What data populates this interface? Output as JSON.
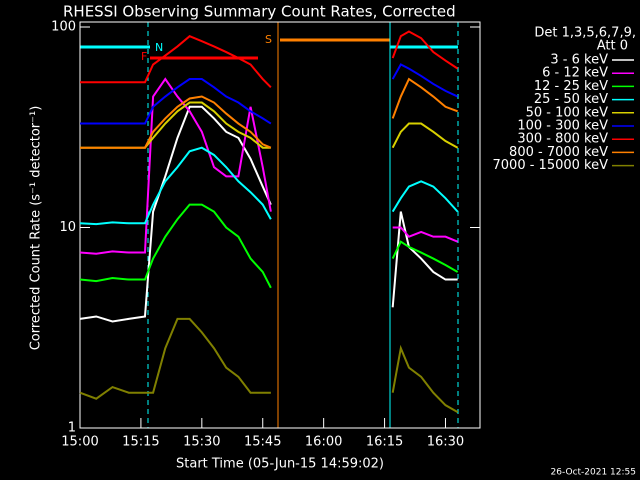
{
  "chart_data": {
    "type": "line",
    "title": "RHESSI Observing Summary Count Rates, Corrected",
    "x_label": "Start Time (05-Jun-15 14:59:02)",
    "y_label": "Corrected Count Rate (s⁻¹ detector⁻¹)",
    "legend_header": [
      "Det 1,3,5,6,7,9,",
      "Att 0"
    ],
    "footer": "26-Oct-2021 12:55",
    "flags": [
      "F",
      "N",
      "S"
    ],
    "log_y": true,
    "legend": "right",
    "xlim": [
      0,
      98.5
    ],
    "xticks": [
      {
        "value": 0,
        "label": "15:00"
      },
      {
        "value": 15,
        "label": "15:15"
      },
      {
        "value": 30,
        "label": "15:30"
      },
      {
        "value": 45,
        "label": "15:45"
      },
      {
        "value": 60,
        "label": "16:00"
      },
      {
        "value": 75,
        "label": "16:15"
      },
      {
        "value": 90,
        "label": "16:30"
      }
    ],
    "ylim": [
      1,
      100
    ],
    "yticks": [
      1,
      10,
      100
    ],
    "x": [
      0,
      4,
      8,
      12,
      16,
      18,
      21,
      24,
      27,
      30,
      33,
      36,
      39,
      42,
      45,
      47,
      60,
      77,
      79,
      81,
      84,
      87,
      90,
      93
    ],
    "series": [
      {
        "name": "3 - 6 keV",
        "color": "#ffffff",
        "values": [
          3.5,
          3.6,
          3.4,
          3.5,
          3.6,
          12,
          18,
          28,
          40,
          40,
          35,
          30,
          28,
          22,
          16,
          13,
          null,
          4,
          12,
          8,
          7,
          6,
          5.5,
          5.5
        ]
      },
      {
        "name": "6 - 12 keV",
        "color": "#ff00ff",
        "values": [
          7.5,
          7.4,
          7.6,
          7.5,
          7.5,
          45,
          55,
          45,
          38,
          30,
          20,
          18,
          18,
          40,
          20,
          12,
          null,
          10,
          10,
          9,
          9.5,
          9,
          9,
          8.5
        ]
      },
      {
        "name": "12 - 25 keV",
        "color": "#00ff00",
        "values": [
          5.5,
          5.4,
          5.6,
          5.5,
          5.5,
          7,
          9,
          11,
          13,
          13,
          12,
          10,
          9,
          7,
          6,
          5,
          null,
          7,
          8.5,
          8,
          7.5,
          7,
          6.5,
          6
        ]
      },
      {
        "name": "25 - 50 keV",
        "color": "#00ffff",
        "values": [
          10.5,
          10.4,
          10.6,
          10.5,
          10.5,
          13,
          17,
          20,
          24,
          25,
          23,
          20,
          17,
          15,
          13,
          11,
          null,
          12,
          14,
          16,
          17,
          16,
          14,
          12
        ]
      },
      {
        "name": "50 - 100 keV",
        "color": "#d8d000",
        "values": [
          25,
          25,
          25,
          25,
          25,
          28,
          33,
          38,
          42,
          42,
          38,
          33,
          30,
          28,
          25,
          25,
          null,
          25,
          30,
          33,
          33,
          30,
          27,
          25
        ]
      },
      {
        "name": "100 - 300 keV",
        "color": "#0000ff",
        "values": [
          33,
          33,
          33,
          33,
          33,
          40,
          45,
          50,
          55,
          55,
          50,
          45,
          42,
          38,
          35,
          33,
          null,
          55,
          65,
          62,
          57,
          52,
          48,
          45
        ]
      },
      {
        "name": "300 - 800 keV",
        "color": "#ff0000",
        "values": [
          53,
          53,
          53,
          53,
          53,
          65,
          72,
          80,
          90,
          85,
          80,
          75,
          70,
          65,
          55,
          50,
          null,
          70,
          90,
          95,
          88,
          75,
          68,
          62
        ]
      },
      {
        "name": "800 - 7000 keV",
        "color": "#ff8000",
        "values": [
          25,
          25,
          25,
          25,
          25,
          30,
          35,
          40,
          44,
          45,
          42,
          37,
          33,
          30,
          26,
          25,
          null,
          35,
          45,
          55,
          50,
          45,
          40,
          38
        ]
      },
      {
        "name": "7000 - 15000 keV",
        "color": "#808000",
        "values": [
          1.5,
          1.4,
          1.6,
          1.5,
          1.5,
          1.5,
          2.5,
          3.5,
          3.5,
          3,
          2.5,
          2,
          1.8,
          1.5,
          1.5,
          1.5,
          null,
          1.5,
          2.5,
          2,
          1.8,
          1.5,
          1.3,
          1.2
        ]
      }
    ]
  }
}
